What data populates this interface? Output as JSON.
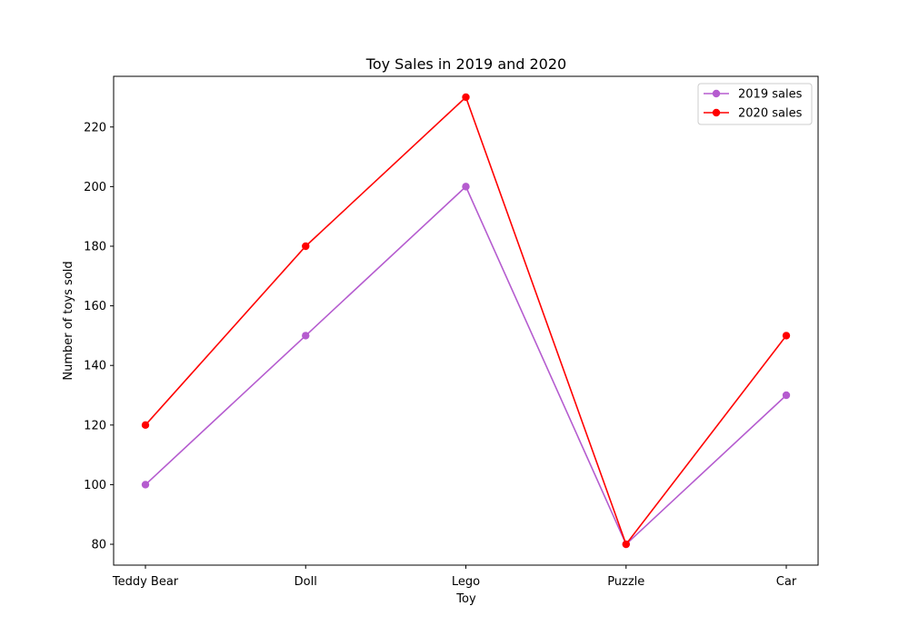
{
  "chart_data": {
    "type": "line",
    "title": "Toy Sales in 2019 and 2020",
    "xlabel": "Toy",
    "ylabel": "Number of toys sold",
    "categories": [
      "Teddy Bear",
      "Doll",
      "Lego",
      "Puzzle",
      "Car"
    ],
    "ylim": [
      73,
      237
    ],
    "yticks": [
      80,
      100,
      120,
      140,
      160,
      180,
      200,
      220
    ],
    "legend": "top-right",
    "grid": false,
    "series": [
      {
        "name": "2019 sales",
        "color": "#b55ccf",
        "values": [
          100,
          150,
          200,
          80,
          130
        ]
      },
      {
        "name": "2020 sales",
        "color": "#ff0000",
        "values": [
          120,
          180,
          230,
          80,
          150
        ]
      }
    ]
  }
}
